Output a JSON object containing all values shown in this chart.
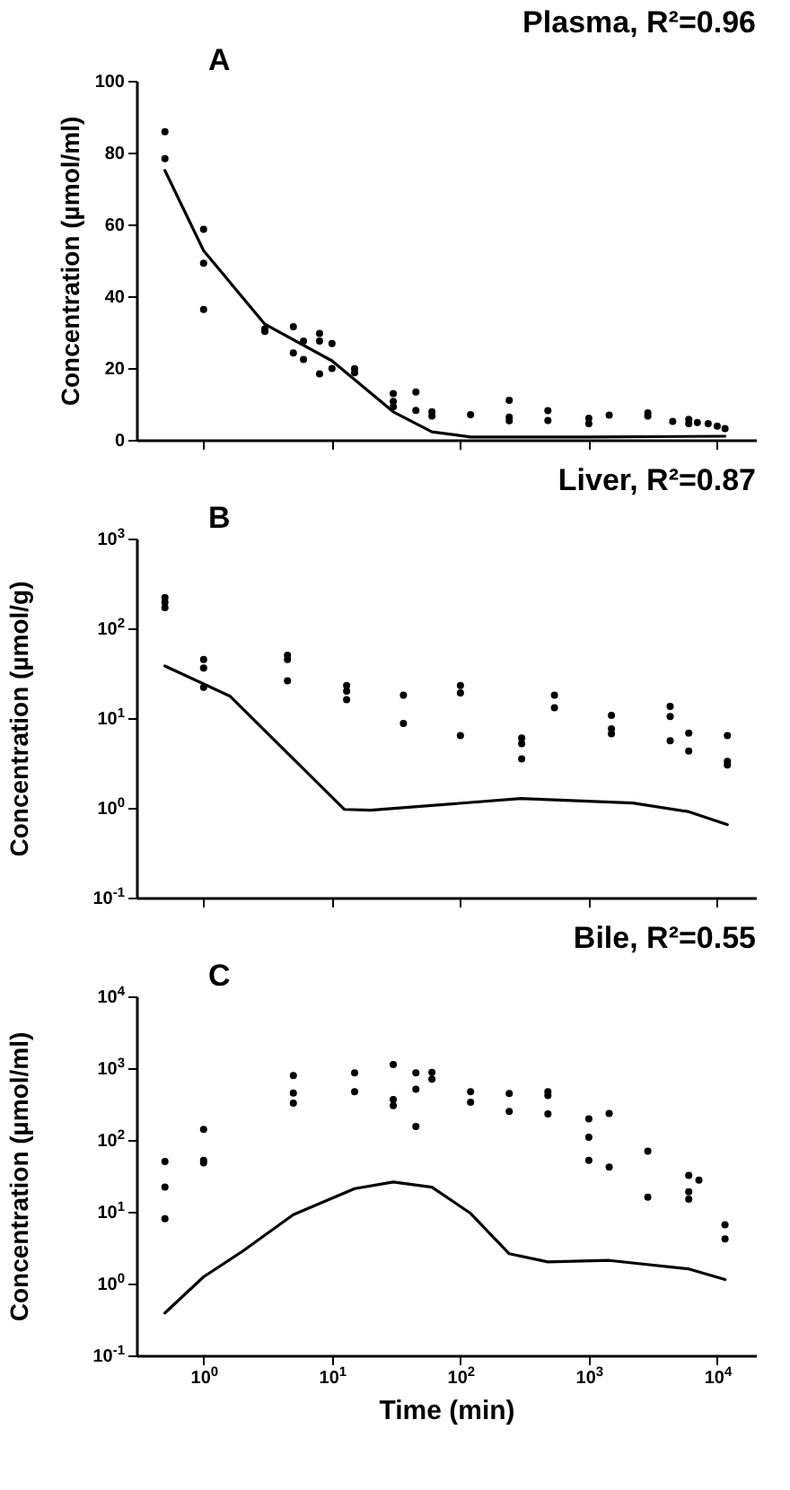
{
  "chart_data": [
    {
      "type": "scatter",
      "title": "Plasma, R²=0.96",
      "annotations": [
        "A"
      ],
      "ylabel": "Concentration (µmol/ml)",
      "xlim": [
        0.3,
        20000
      ],
      "xticks": [
        {
          "value": 1,
          "label": null
        },
        {
          "value": 10,
          "label": null
        },
        {
          "value": 100,
          "label": null
        },
        {
          "value": 1000,
          "label": null
        },
        {
          "value": 10000,
          "label": null
        }
      ],
      "ylim": [
        0,
        100
      ],
      "yticks": [
        0,
        20,
        40,
        60,
        80,
        100
      ],
      "log": "x",
      "tick_labels": "y",
      "grid": false,
      "series": [
        {
          "color": "#000000",
          "marker": "circle",
          "x": [
            0.5,
            0.5,
            1,
            1,
            1,
            3,
            3,
            5,
            5,
            6,
            6,
            8,
            8,
            8,
            10,
            10,
            15,
            15,
            30,
            30,
            30,
            45,
            45,
            60,
            60,
            120,
            240,
            240,
            240,
            480,
            480,
            1000,
            1000,
            1440,
            2880,
            2880,
            4500,
            6000,
            6000,
            7000,
            8500,
            10000,
            11500
          ],
          "values": [
            85.8,
            78.3,
            58.6,
            49.2,
            36.3,
            30.9,
            30.2,
            31.5,
            24.2,
            27.5,
            22.4,
            29.6,
            27.5,
            18.4,
            26.8,
            19.9,
            19.8,
            18.7,
            12.9,
            10.7,
            9.2,
            13.3,
            8.2,
            7.8,
            6.6,
            7.0,
            11,
            6.3,
            5.3,
            8.1,
            5.4,
            6,
            4.5,
            6.9,
            7.5,
            6.6,
            5.1,
            5.7,
            4.5,
            4.8,
            4.5,
            3.8,
            3.1
          ]
        },
        {
          "type": "line",
          "color": "#000000",
          "x": [
            0.5,
            1,
            3,
            10,
            30,
            60,
            120,
            1000,
            11500
          ],
          "values": [
            75,
            52.7,
            32.2,
            22,
            7.8,
            2.2,
            0.8,
            0.8,
            1
          ]
        }
      ]
    },
    {
      "type": "scatter",
      "title": "Liver, R²=0.87",
      "annotations": [
        "B"
      ],
      "ylabel": "Concentration (µmol/g)",
      "xlim": [
        0.3,
        20000
      ],
      "xticks": [
        {
          "value": 1,
          "label": null
        },
        {
          "value": 10,
          "label": null
        },
        {
          "value": 100,
          "label": null
        },
        {
          "value": 1000,
          "label": null
        },
        {
          "value": 10000,
          "label": null
        }
      ],
      "ylim": [
        0.1,
        1000
      ],
      "yticks": [
        {
          "value": 0.1,
          "label": "10$^{-1}$"
        },
        {
          "value": 1,
          "label": "10$^{0}$"
        },
        {
          "value": 10,
          "label": "10$^{1}$"
        },
        {
          "value": 100,
          "label": "10$^{2}$"
        },
        {
          "value": 1000,
          "label": "10$^{3}$"
        }
      ],
      "log": "xy",
      "tick_labels": "y",
      "grid": false,
      "series": [
        {
          "color": "#000000",
          "marker": "circle",
          "x": [
            0.5,
            0.5,
            0.5,
            1,
            1,
            1,
            4.5,
            4.5,
            4.5,
            13,
            13,
            13,
            36,
            36,
            100,
            100,
            100,
            300,
            300,
            300,
            540,
            540,
            1500,
            1500,
            1500,
            4300,
            4300,
            4300,
            6000,
            6000,
            12000,
            12000,
            12000
          ],
          "values": [
            220,
            195,
            170,
            45,
            36,
            22,
            50,
            45,
            26,
            23,
            20,
            16,
            18,
            8.7,
            23,
            19,
            6.4,
            6.0,
            5.2,
            3.5,
            18,
            13,
            10.7,
            7.6,
            6.7,
            13.5,
            10.4,
            5.6,
            6.8,
            4.3,
            6.4,
            3.3,
            3.0
          ]
        },
        {
          "type": "line",
          "color": "#000000",
          "x": [
            0.5,
            1.6,
            12.5,
            20,
            295,
            2200,
            5900,
            12000
          ],
          "values": [
            38,
            17.6,
            0.96,
            0.94,
            1.27,
            1.13,
            0.91,
            0.65
          ]
        }
      ]
    },
    {
      "type": "scatter",
      "title": "Bile, R²=0.55",
      "annotations": [
        "C"
      ],
      "xlabel": "Time (min)",
      "ylabel": "Concentration (µmol/ml)",
      "xlim": [
        0.3,
        20000
      ],
      "xticks": [
        {
          "value": 1,
          "label": "10$^{0}$"
        },
        {
          "value": 10,
          "label": "10$^{1}$"
        },
        {
          "value": 100,
          "label": "10$^{2}$"
        },
        {
          "value": 1000,
          "label": "10$^{3}$"
        },
        {
          "value": 10000,
          "label": "10$^{4}$"
        }
      ],
      "ylim": [
        0.1,
        10000
      ],
      "yticks": [
        {
          "value": 0.1,
          "label": "10$^{-1}$"
        },
        {
          "value": 1,
          "label": "10$^{0}$"
        },
        {
          "value": 10,
          "label": "10$^{1}$"
        },
        {
          "value": 100,
          "label": "10$^{2}$"
        },
        {
          "value": 1000,
          "label": "10$^{3}$"
        },
        {
          "value": 10000,
          "label": "10$^{4}$"
        }
      ],
      "log": "xy",
      "grid": false,
      "series": [
        {
          "color": "#000000",
          "marker": "circle",
          "x": [
            0.5,
            0.5,
            0.5,
            1,
            1,
            1,
            5,
            5,
            5,
            15,
            15,
            30,
            30,
            30,
            45,
            45,
            45,
            60,
            60,
            120,
            120,
            240,
            240,
            480,
            480,
            480,
            1000,
            1000,
            1000,
            1440,
            1440,
            2880,
            2880,
            6000,
            6000,
            6000,
            7200,
            11500,
            11500
          ],
          "values": [
            50,
            22,
            8,
            140,
            52,
            48,
            790,
            450,
            325,
            860,
            470,
            1120,
            365,
            300,
            860,
            510,
            154,
            875,
            705,
            470,
            335,
            445,
            250,
            470,
            415,
            230,
            197,
            109,
            52,
            233,
            42,
            70,
            16,
            32,
            19,
            15,
            27.5,
            6.6,
            4.2
          ]
        },
        {
          "type": "line",
          "color": "#000000",
          "x": [
            0.5,
            1,
            2,
            5,
            15,
            30,
            60,
            120,
            240,
            480,
            1440,
            6000,
            11500
          ],
          "values": [
            0.39,
            1.24,
            2.8,
            9.1,
            21,
            26,
            22,
            9.5,
            2.6,
            2.0,
            2.1,
            1.6,
            1.14
          ]
        }
      ]
    }
  ]
}
